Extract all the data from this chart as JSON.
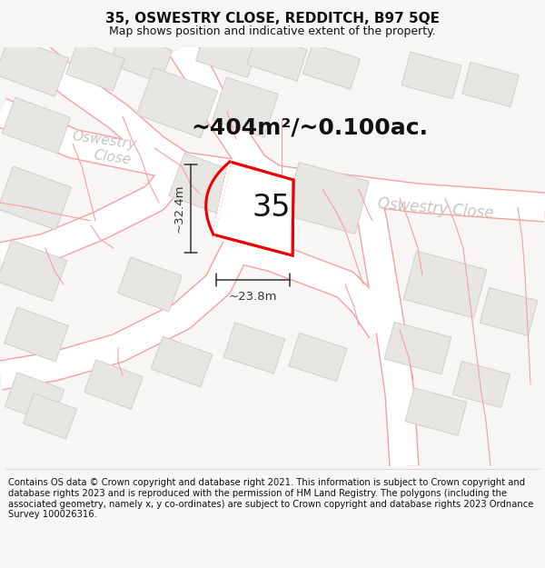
{
  "title": "35, OSWESTRY CLOSE, REDDITCH, B97 5QE",
  "subtitle": "Map shows position and indicative extent of the property.",
  "footer": "Contains OS data © Crown copyright and database right 2021. This information is subject to Crown copyright and database rights 2023 and is reproduced with the permission of HM Land Registry. The polygons (including the associated geometry, namely x, y co-ordinates) are subject to Crown copyright and database rights 2023 Ordnance Survey 100026316.",
  "area_label": "~404m²/~0.100ac.",
  "width_label": "~23.8m",
  "height_label": "~32.4m",
  "plot_number": "35",
  "map_bg": "#f7f6f4",
  "building_fc": "#e8e6e3",
  "building_ec": "#d0cecc",
  "road_bg": "#ffffff",
  "road_line_color": "#f5a0a0",
  "plot_stroke": "#ee0000",
  "dim_color": "#333333",
  "road_label_color": "#c8c4c0",
  "title_fontsize": 11,
  "subtitle_fontsize": 9,
  "footer_fontsize": 7.2,
  "area_fontsize": 18,
  "plot_num_fontsize": 24,
  "dim_fontsize": 9.5,
  "road_label_fontsize": 11
}
